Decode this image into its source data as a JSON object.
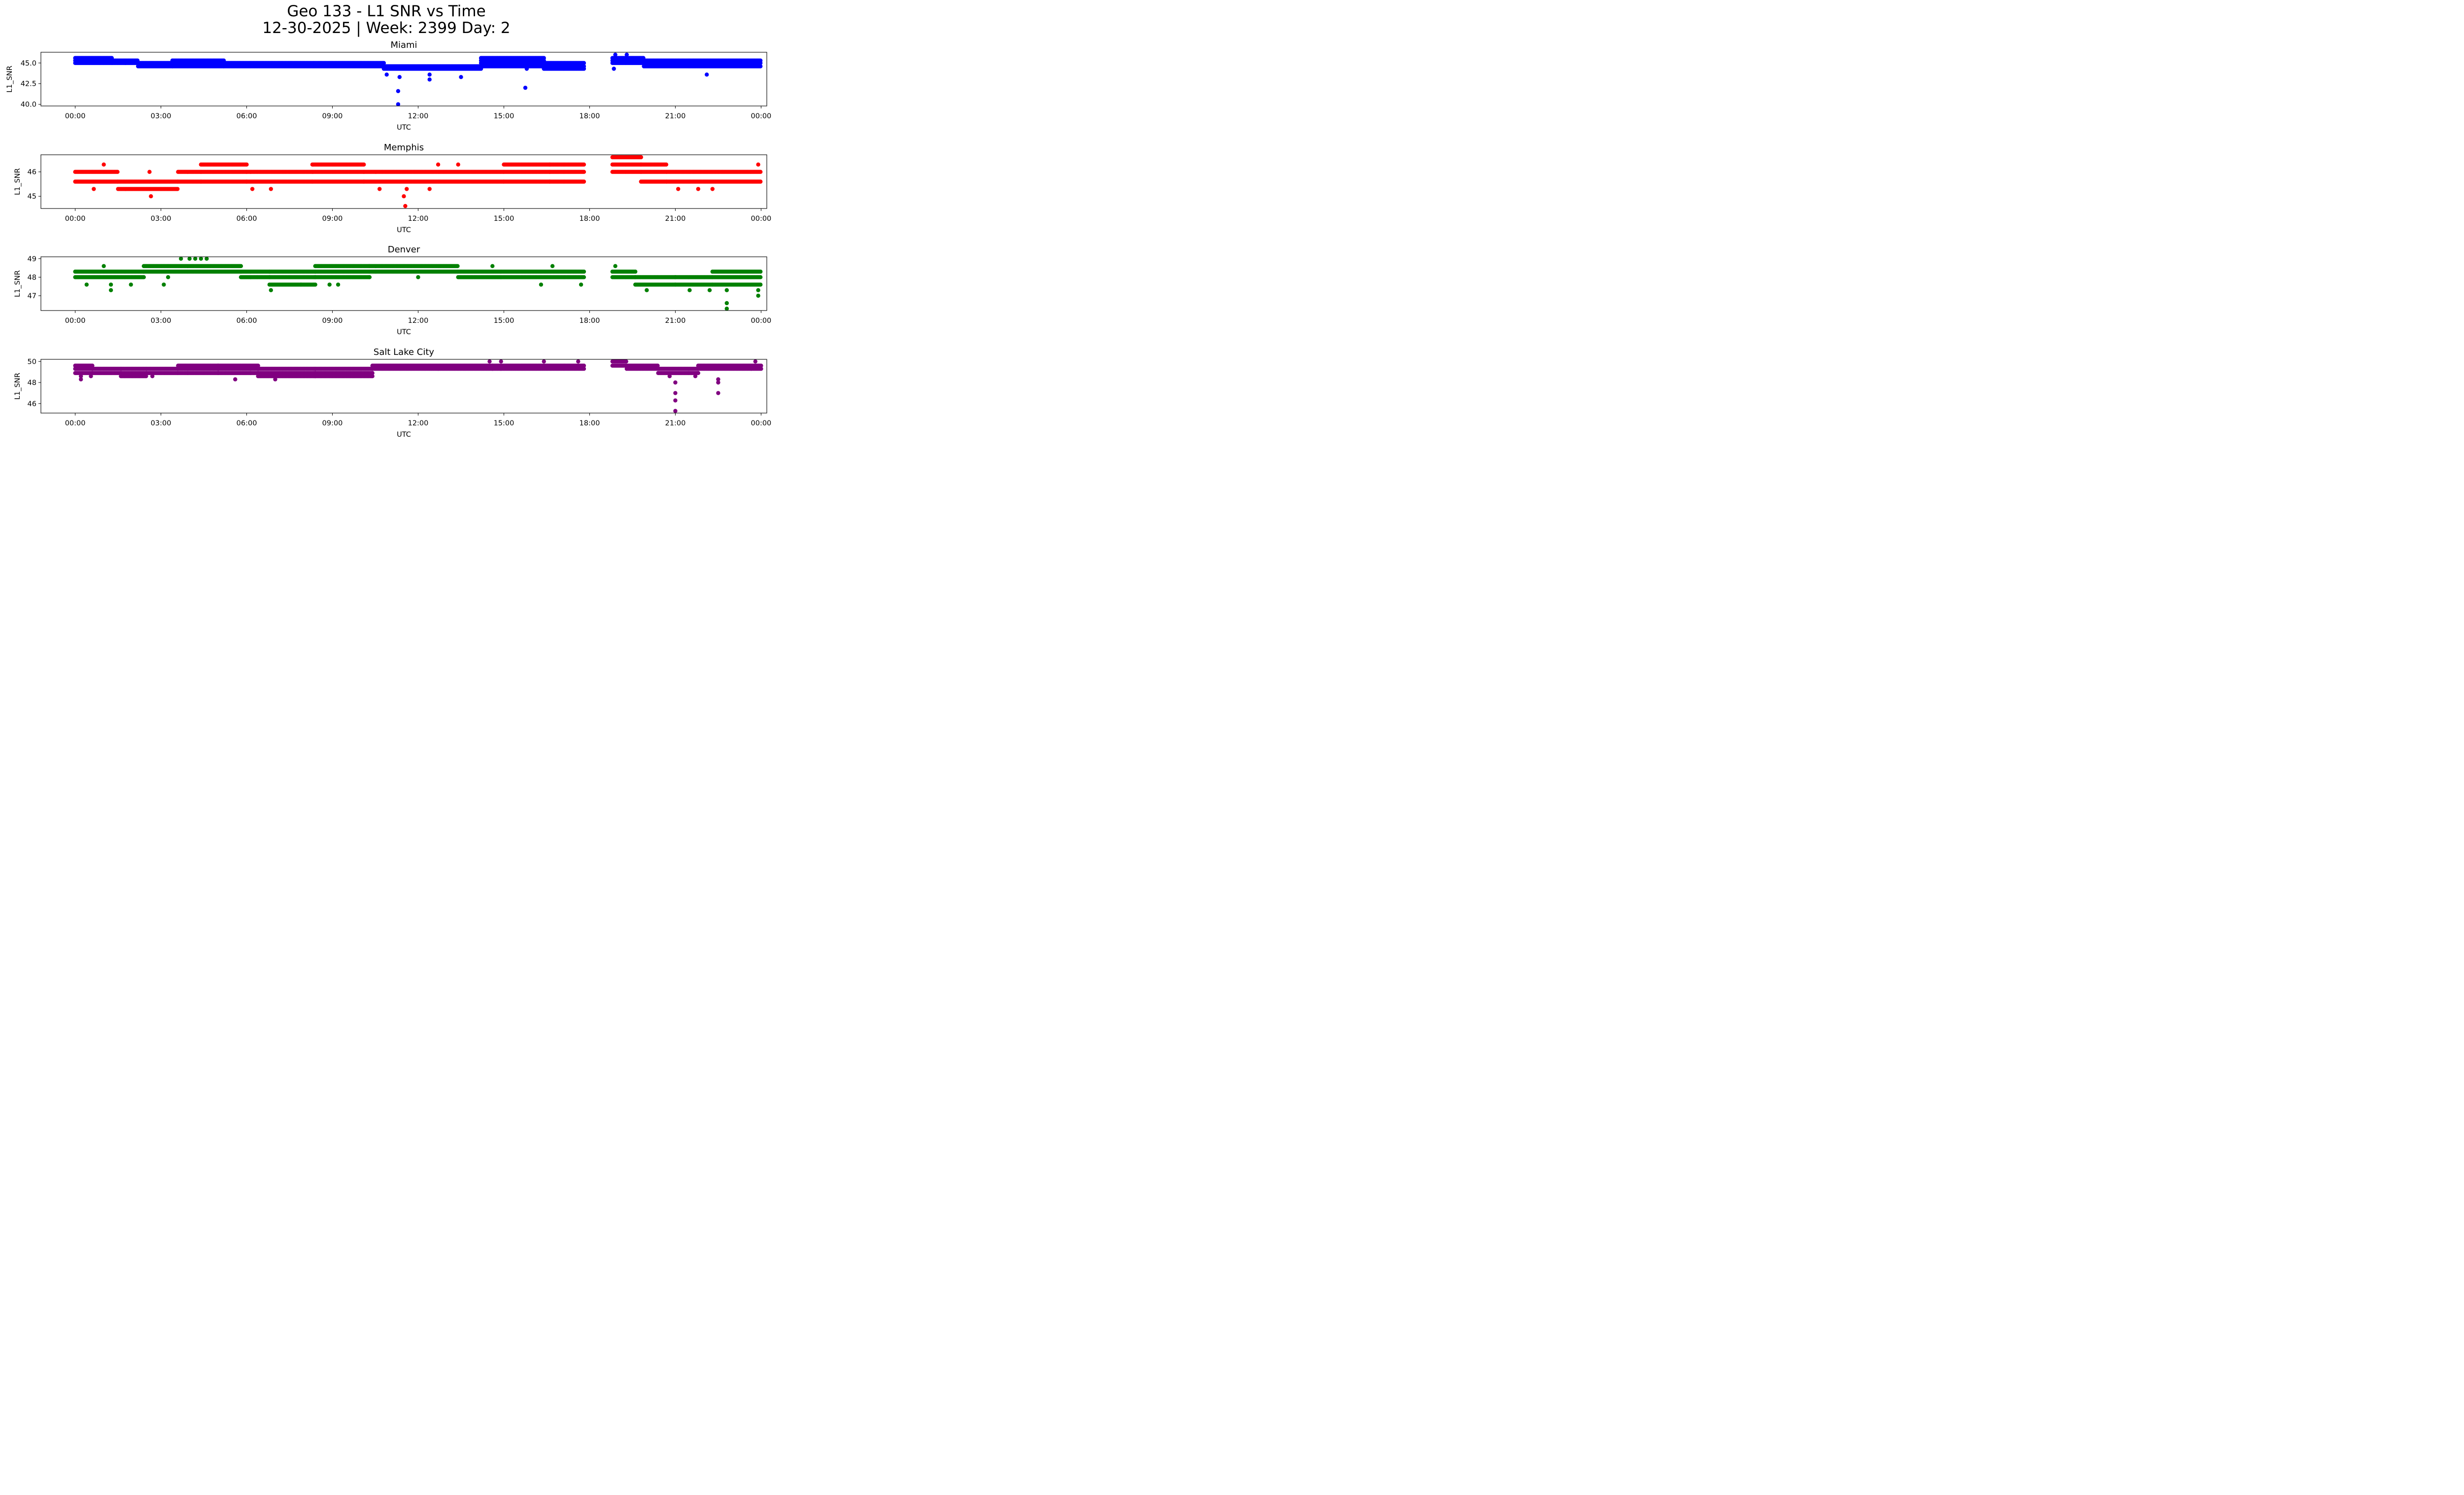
{
  "figure": {
    "title_line1": "Geo 133 - L1 SNR vs Time",
    "title_line2": "12-30-2025 | Week: 2399 Day: 2"
  },
  "chart_data": [
    {
      "type": "scatter",
      "title": "Miami",
      "xlabel": "UTC",
      "ylabel": "L1_SNR",
      "color": "#0000ff",
      "xlim": [
        -1.2,
        24.2
      ],
      "ylim": [
        39.8,
        46.3
      ],
      "yticks": [
        40.0,
        42.5,
        45.0
      ],
      "ytick_labels": [
        "40.0",
        "42.5",
        "45.0"
      ],
      "xtick_labels": [
        "00:00",
        "03:00",
        "06:00",
        "09:00",
        "12:00",
        "15:00",
        "18:00",
        "21:00",
        "00:00"
      ],
      "bands": [
        {
          "from": 0.0,
          "to": 1.3,
          "values": [
            45.0,
            45.3,
            45.6
          ]
        },
        {
          "from": 1.3,
          "to": 2.2,
          "values": [
            45.0,
            45.3
          ]
        },
        {
          "from": 2.2,
          "to": 3.4,
          "values": [
            44.6,
            45.0
          ]
        },
        {
          "from": 3.4,
          "to": 5.2,
          "values": [
            44.6,
            45.0,
            45.3
          ]
        },
        {
          "from": 5.2,
          "to": 10.8,
          "values": [
            44.6,
            45.0
          ]
        },
        {
          "from": 10.8,
          "to": 14.2,
          "values": [
            44.3,
            44.6
          ]
        },
        {
          "from": 14.2,
          "to": 16.4,
          "values": [
            44.6,
            45.0,
            45.3,
            45.6
          ]
        },
        {
          "from": 16.4,
          "to": 17.8,
          "values": [
            44.3,
            44.6,
            45.0
          ]
        },
        {
          "from": 18.8,
          "to": 19.9,
          "values": [
            45.0,
            45.3,
            45.6
          ]
        },
        {
          "from": 19.9,
          "to": 24.0,
          "values": [
            44.6,
            45.0,
            45.3
          ]
        }
      ],
      "outliers": [
        [
          11.3,
          40.0
        ],
        [
          11.3,
          41.6
        ],
        [
          11.35,
          43.3
        ],
        [
          10.9,
          43.6
        ],
        [
          12.4,
          43.0
        ],
        [
          12.4,
          43.6
        ],
        [
          13.5,
          43.3
        ],
        [
          15.75,
          42.0
        ],
        [
          15.8,
          44.3
        ],
        [
          22.1,
          43.6
        ],
        [
          18.85,
          44.3
        ],
        [
          18.9,
          46.0
        ],
        [
          19.3,
          46.0
        ]
      ]
    },
    {
      "type": "scatter",
      "title": "Memphis",
      "xlabel": "UTC",
      "ylabel": "L1_SNR",
      "color": "#ff0000",
      "xlim": [
        -1.2,
        24.2
      ],
      "ylim": [
        44.5,
        46.7
      ],
      "yticks": [
        45,
        46
      ],
      "ytick_labels": [
        "45",
        "46"
      ],
      "xtick_labels": [
        "00:00",
        "03:00",
        "06:00",
        "09:00",
        "12:00",
        "15:00",
        "18:00",
        "21:00",
        "00:00"
      ],
      "bands": [
        {
          "from": 0.0,
          "to": 1.5,
          "values": [
            45.6,
            46.0
          ]
        },
        {
          "from": 1.5,
          "to": 3.6,
          "values": [
            45.3,
            45.6
          ]
        },
        {
          "from": 3.6,
          "to": 4.4,
          "values": [
            45.6,
            46.0
          ]
        },
        {
          "from": 4.4,
          "to": 6.0,
          "values": [
            45.6,
            46.0,
            46.3
          ]
        },
        {
          "from": 6.0,
          "to": 8.3,
          "values": [
            45.6,
            46.0
          ]
        },
        {
          "from": 8.3,
          "to": 10.1,
          "values": [
            45.6,
            46.0,
            46.3
          ]
        },
        {
          "from": 10.1,
          "to": 15.0,
          "values": [
            45.6,
            46.0
          ]
        },
        {
          "from": 15.0,
          "to": 16.6,
          "values": [
            45.6,
            46.0,
            46.3
          ]
        },
        {
          "from": 16.6,
          "to": 17.8,
          "values": [
            45.6,
            46.0,
            46.3
          ]
        },
        {
          "from": 18.8,
          "to": 19.8,
          "values": [
            46.0,
            46.3,
            46.6
          ]
        },
        {
          "from": 19.8,
          "to": 20.7,
          "values": [
            45.6,
            46.0,
            46.3
          ]
        },
        {
          "from": 20.7,
          "to": 24.0,
          "values": [
            45.6,
            46.0
          ]
        }
      ],
      "outliers": [
        [
          0.65,
          45.3
        ],
        [
          1.0,
          46.3
        ],
        [
          2.65,
          45.0
        ],
        [
          2.6,
          46.0
        ],
        [
          6.2,
          45.3
        ],
        [
          6.85,
          45.3
        ],
        [
          10.65,
          45.3
        ],
        [
          11.55,
          44.6
        ],
        [
          11.5,
          45.0
        ],
        [
          11.6,
          45.3
        ],
        [
          12.4,
          45.3
        ],
        [
          12.7,
          46.3
        ],
        [
          13.4,
          46.3
        ],
        [
          21.1,
          45.3
        ],
        [
          21.8,
          45.3
        ],
        [
          22.3,
          45.3
        ],
        [
          23.9,
          46.3
        ]
      ]
    },
    {
      "type": "scatter",
      "title": "Denver",
      "xlabel": "UTC",
      "ylabel": "L1_SNR",
      "color": "#008000",
      "xlim": [
        -1.2,
        24.2
      ],
      "ylim": [
        46.2,
        49.1
      ],
      "yticks": [
        47,
        48,
        49
      ],
      "ytick_labels": [
        "47",
        "48",
        "49"
      ],
      "xtick_labels": [
        "00:00",
        "03:00",
        "06:00",
        "09:00",
        "12:00",
        "15:00",
        "18:00",
        "21:00",
        "00:00"
      ],
      "bands": [
        {
          "from": 0.0,
          "to": 2.4,
          "values": [
            48.0,
            48.3
          ]
        },
        {
          "from": 2.4,
          "to": 5.8,
          "values": [
            48.3,
            48.6
          ]
        },
        {
          "from": 5.8,
          "to": 6.8,
          "values": [
            48.0,
            48.3
          ]
        },
        {
          "from": 6.8,
          "to": 8.4,
          "values": [
            47.6,
            48.0,
            48.3
          ]
        },
        {
          "from": 8.4,
          "to": 10.3,
          "values": [
            48.0,
            48.3,
            48.6
          ]
        },
        {
          "from": 10.3,
          "to": 13.4,
          "values": [
            48.3,
            48.6
          ]
        },
        {
          "from": 13.4,
          "to": 17.8,
          "values": [
            48.0,
            48.3
          ]
        },
        {
          "from": 18.8,
          "to": 19.6,
          "values": [
            48.0,
            48.3
          ]
        },
        {
          "from": 19.6,
          "to": 21.0,
          "values": [
            47.6,
            48.0
          ]
        },
        {
          "from": 21.0,
          "to": 22.3,
          "values": [
            47.6,
            48.0
          ]
        },
        {
          "from": 22.3,
          "to": 24.0,
          "values": [
            47.6,
            48.0,
            48.3
          ]
        }
      ],
      "outliers": [
        [
          0.4,
          47.6
        ],
        [
          1.0,
          48.6
        ],
        [
          1.25,
          47.3
        ],
        [
          1.25,
          47.6
        ],
        [
          1.95,
          47.6
        ],
        [
          3.1,
          47.6
        ],
        [
          3.25,
          48.0
        ],
        [
          3.7,
          49.0
        ],
        [
          4.0,
          49.0
        ],
        [
          4.2,
          49.0
        ],
        [
          4.4,
          49.0
        ],
        [
          4.6,
          49.0
        ],
        [
          6.85,
          47.3
        ],
        [
          7.9,
          47.6
        ],
        [
          8.9,
          47.6
        ],
        [
          9.2,
          47.6
        ],
        [
          10.3,
          48.0
        ],
        [
          12.0,
          48.0
        ],
        [
          14.6,
          48.6
        ],
        [
          16.3,
          47.6
        ],
        [
          16.7,
          48.6
        ],
        [
          17.7,
          47.6
        ],
        [
          18.9,
          48.6
        ],
        [
          20.0,
          47.3
        ],
        [
          21.5,
          47.3
        ],
        [
          22.2,
          47.3
        ],
        [
          22.8,
          46.6
        ],
        [
          22.8,
          46.3
        ],
        [
          22.8,
          47.3
        ],
        [
          23.9,
          47.0
        ],
        [
          23.9,
          47.3
        ]
      ]
    },
    {
      "type": "scatter",
      "title": "Salt Lake City",
      "xlabel": "UTC",
      "ylabel": "L1_SNR",
      "color": "#800080",
      "xlim": [
        -1.2,
        24.2
      ],
      "ylim": [
        45.1,
        50.2
      ],
      "yticks": [
        46,
        48,
        50
      ],
      "ytick_labels": [
        "46",
        "48",
        "50"
      ],
      "xtick_labels": [
        "00:00",
        "03:00",
        "06:00",
        "09:00",
        "12:00",
        "15:00",
        "18:00",
        "21:00",
        "00:00"
      ],
      "bands": [
        {
          "from": 0.0,
          "to": 0.6,
          "values": [
            48.9,
            49.3,
            49.6
          ]
        },
        {
          "from": 0.6,
          "to": 1.6,
          "values": [
            48.9,
            49.3
          ]
        },
        {
          "from": 1.6,
          "to": 2.5,
          "values": [
            48.6,
            48.9,
            49.3
          ]
        },
        {
          "from": 2.5,
          "to": 3.6,
          "values": [
            48.9,
            49.3
          ]
        },
        {
          "from": 3.6,
          "to": 5.0,
          "values": [
            48.9,
            49.3,
            49.6
          ]
        },
        {
          "from": 5.0,
          "to": 6.4,
          "values": [
            48.9,
            49.3,
            49.6
          ]
        },
        {
          "from": 6.4,
          "to": 8.4,
          "values": [
            48.6,
            48.9,
            49.3
          ]
        },
        {
          "from": 8.4,
          "to": 10.4,
          "values": [
            48.6,
            48.9,
            49.3
          ]
        },
        {
          "from": 10.4,
          "to": 14.6,
          "values": [
            49.3,
            49.6
          ]
        },
        {
          "from": 14.6,
          "to": 17.8,
          "values": [
            49.3,
            49.6
          ]
        },
        {
          "from": 18.8,
          "to": 19.3,
          "values": [
            49.6,
            50.0
          ]
        },
        {
          "from": 19.3,
          "to": 20.4,
          "values": [
            49.3,
            49.6
          ]
        },
        {
          "from": 20.4,
          "to": 21.8,
          "values": [
            48.9,
            49.3
          ]
        },
        {
          "from": 21.8,
          "to": 24.0,
          "values": [
            49.3,
            49.6
          ]
        }
      ],
      "outliers": [
        [
          0.2,
          48.6
        ],
        [
          0.2,
          48.3
        ],
        [
          0.55,
          48.6
        ],
        [
          2.7,
          48.6
        ],
        [
          5.6,
          48.3
        ],
        [
          7.0,
          48.3
        ],
        [
          14.5,
          50.0
        ],
        [
          14.9,
          50.0
        ],
        [
          16.4,
          50.0
        ],
        [
          17.6,
          50.0
        ],
        [
          20.8,
          48.6
        ],
        [
          21.0,
          48.0
        ],
        [
          21.0,
          47.0
        ],
        [
          21.0,
          46.3
        ],
        [
          21.0,
          45.3
        ],
        [
          21.7,
          48.6
        ],
        [
          22.5,
          48.3
        ],
        [
          22.5,
          48.0
        ],
        [
          22.5,
          47.0
        ],
        [
          23.8,
          50.0
        ]
      ]
    }
  ]
}
